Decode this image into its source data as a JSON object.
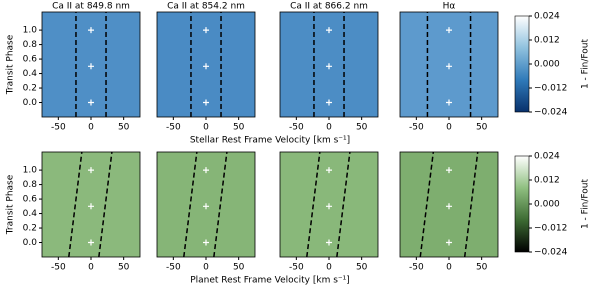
{
  "chart_data": [
    {
      "type": "heatmap",
      "title": "Ca II at 849.8 nm",
      "ylabel": "Transit Phase",
      "xlabel": "Stellar Rest Frame Velocity [km s⁻¹]",
      "background": "#4f8fc6",
      "xlim": [
        -75,
        75
      ],
      "xticks": [
        -50,
        0,
        50
      ],
      "ylim": [
        -0.2,
        1.25
      ],
      "yticks": [
        {
          "value": 0,
          "label": "0.0"
        },
        {
          "value": 0.2,
          "label": "0.2"
        },
        {
          "value": 0.4,
          "label": "0.4"
        },
        {
          "value": 0.6,
          "label": "0.6"
        },
        {
          "value": 0.8,
          "label": "0.8"
        },
        {
          "value": 1,
          "label": "1.0"
        }
      ],
      "dashed_lines": [
        {
          "x0": -23,
          "x1": -23
        },
        {
          "x0": 23,
          "x1": 23
        }
      ],
      "markers": {
        "x": [
          0,
          0,
          0
        ],
        "y": [
          0,
          0.5,
          1
        ]
      }
    },
    {
      "type": "heatmap",
      "title": "Ca II at 854.2 nm",
      "background": "#4a8bc4",
      "xlim": [
        -75,
        75
      ],
      "xticks": [
        -50,
        0,
        50
      ],
      "ylim": [
        -0.2,
        1.25
      ],
      "dashed_lines": [
        {
          "x0": -23,
          "x1": -23
        },
        {
          "x0": 23,
          "x1": 23
        }
      ],
      "markers": {
        "x": [
          0,
          0,
          0
        ],
        "y": [
          0,
          0.5,
          1
        ]
      }
    },
    {
      "type": "heatmap",
      "title": "Ca II at 866.2 nm",
      "background": "#4c8dc5",
      "xlim": [
        -75,
        75
      ],
      "xticks": [
        -50,
        0,
        50
      ],
      "ylim": [
        -0.2,
        1.25
      ],
      "dashed_lines": [
        {
          "x0": -23,
          "x1": -23
        },
        {
          "x0": 23,
          "x1": 23
        }
      ],
      "markers": {
        "x": [
          0,
          0,
          0
        ],
        "y": [
          0,
          0.5,
          1
        ]
      }
    },
    {
      "type": "heatmap",
      "title": "Hα",
      "background": "#5d9acd",
      "xlim": [
        -75,
        75
      ],
      "xticks": [
        -50,
        0,
        50
      ],
      "ylim": [
        -0.2,
        1.25
      ],
      "dashed_lines": [
        {
          "x0": -33,
          "x1": -33
        },
        {
          "x0": 33,
          "x1": 33
        }
      ],
      "markers": {
        "x": [
          0,
          0,
          0
        ],
        "y": [
          0,
          0.5,
          1
        ]
      }
    },
    {
      "type": "colorbar",
      "label": "1 - Fin/Fout",
      "colors": [
        "#08306b",
        "#2f7ab9",
        "#8fc1de",
        "#ffffff"
      ],
      "zlim": [
        -0.024,
        0.024
      ],
      "zticks": [
        {
          "value": -0.024,
          "label": "−0.024"
        },
        {
          "value": -0.012,
          "label": "−0.012"
        },
        {
          "value": 0,
          "label": "0.000"
        },
        {
          "value": 0.012,
          "label": "0.012"
        },
        {
          "value": 0.024,
          "label": "0.024"
        }
      ]
    },
    {
      "type": "heatmap",
      "ylabel": "Transit Phase",
      "xlabel": "Planet Rest Frame Velocity [km s⁻¹]",
      "background": "#8bb97c",
      "xlim": [
        -75,
        75
      ],
      "xticks": [
        -50,
        0,
        50
      ],
      "ylim": [
        -0.2,
        1.25
      ],
      "yticks": [
        {
          "value": 0,
          "label": "0.0"
        },
        {
          "value": 0.2,
          "label": "0.2"
        },
        {
          "value": 0.4,
          "label": "0.4"
        },
        {
          "value": 0.6,
          "label": "0.6"
        },
        {
          "value": 0.8,
          "label": "0.8"
        },
        {
          "value": 1,
          "label": "1.0"
        }
      ],
      "dashed_lines": [
        {
          "x0": -34,
          "x1": -14
        },
        {
          "x0": 12,
          "x1": 32
        }
      ],
      "markers": {
        "x": [
          0,
          0,
          0
        ],
        "y": [
          0,
          0.5,
          1
        ]
      }
    },
    {
      "type": "heatmap",
      "background": "#86b577",
      "xlim": [
        -75,
        75
      ],
      "xticks": [
        -50,
        0,
        50
      ],
      "ylim": [
        -0.2,
        1.25
      ],
      "dashed_lines": [
        {
          "x0": -34,
          "x1": -14
        },
        {
          "x0": 12,
          "x1": 32
        }
      ],
      "markers": {
        "x": [
          0,
          0,
          0
        ],
        "y": [
          0,
          0.5,
          1
        ]
      }
    },
    {
      "type": "heatmap",
      "background": "#89b87a",
      "xlim": [
        -75,
        75
      ],
      "xticks": [
        -50,
        0,
        50
      ],
      "ylim": [
        -0.2,
        1.25
      ],
      "dashed_lines": [
        {
          "x0": -34,
          "x1": -14
        },
        {
          "x0": 12,
          "x1": 32
        }
      ],
      "markers": {
        "x": [
          0,
          0,
          0
        ],
        "y": [
          0,
          0.5,
          1
        ]
      }
    },
    {
      "type": "heatmap",
      "background": "#7eae6f",
      "xlim": [
        -75,
        75
      ],
      "xticks": [
        -50,
        0,
        50
      ],
      "ylim": [
        -0.2,
        1.25
      ],
      "dashed_lines": [
        {
          "x0": -44,
          "x1": -24
        },
        {
          "x0": 24,
          "x1": 44
        }
      ],
      "markers": {
        "x": [
          0,
          0,
          0
        ],
        "y": [
          0,
          0.5,
          1
        ]
      }
    },
    {
      "type": "colorbar",
      "label": "1 - Fin/Fout",
      "colors": [
        "#000000",
        "#3d6b33",
        "#8fbf80",
        "#ffffff"
      ],
      "zlim": [
        -0.024,
        0.024
      ],
      "zticks": [
        {
          "value": -0.024,
          "label": "−0.024"
        },
        {
          "value": -0.012,
          "label": "−0.012"
        },
        {
          "value": 0,
          "label": "0.000"
        },
        {
          "value": 0.012,
          "label": "0.012"
        },
        {
          "value": 0.024,
          "label": "0.024"
        }
      ]
    }
  ]
}
